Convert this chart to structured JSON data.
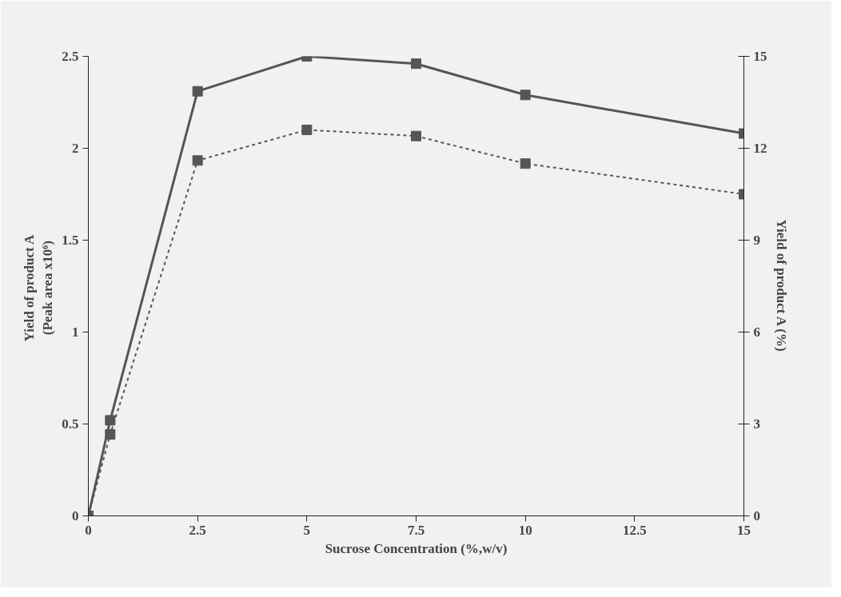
{
  "chart_data": {
    "type": "line",
    "xlabel": "Sucrose Concentration (%,w/v)",
    "ylabel": "Yield of  product A\n(Peak area  x10⁶)",
    "y2label": "Yield of product A (%)",
    "x": [
      0,
      0.5,
      2.5,
      5,
      7.5,
      10,
      15
    ],
    "series": [
      {
        "color": "#555555",
        "line_style": "solid",
        "values": [
          0,
          0.52,
          2.31,
          2.5,
          2.46,
          2.29,
          2.08
        ]
      },
      {
        "color": "#555555",
        "line_style": "dotted",
        "axis": "y2",
        "values": [
          0,
          2.66,
          11.6,
          12.6,
          12.4,
          11.5,
          10.5
        ]
      }
    ],
    "xlim": [
      0,
      15
    ],
    "xticks": [
      0,
      2.5,
      5,
      7.5,
      10,
      12.5,
      15
    ],
    "ylim": [
      0,
      2.5
    ],
    "yticks": [
      0,
      0.5,
      1,
      1.5,
      2,
      2.5
    ],
    "y2lim": [
      0,
      15
    ],
    "y2ticks": [
      0,
      3,
      6,
      9,
      12,
      15
    ],
    "marker": "square",
    "grid": false
  }
}
